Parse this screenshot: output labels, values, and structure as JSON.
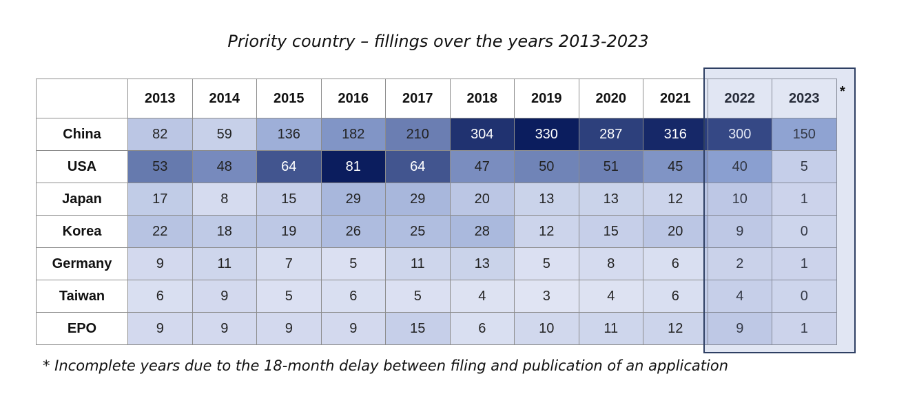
{
  "title": "Priority country – fillings over the years 2013-2023",
  "footnote": "* Incomplete years due to the 18-month delay between filing and publication of an application",
  "asterisk": "*",
  "chart_data": {
    "type": "heatmap",
    "title": "Priority country – fillings over the years 2013-2023",
    "columns": [
      "2013",
      "2014",
      "2015",
      "2016",
      "2017",
      "2018",
      "2019",
      "2020",
      "2021",
      "2022",
      "2023"
    ],
    "rows": [
      {
        "label": "China",
        "values": [
          82,
          59,
          136,
          182,
          210,
          304,
          330,
          287,
          316,
          300,
          150
        ]
      },
      {
        "label": "USA",
        "values": [
          53,
          48,
          64,
          81,
          64,
          47,
          50,
          51,
          45,
          40,
          5
        ]
      },
      {
        "label": "Japan",
        "values": [
          17,
          8,
          15,
          29,
          29,
          20,
          13,
          13,
          12,
          10,
          1
        ]
      },
      {
        "label": "Korea",
        "values": [
          22,
          18,
          19,
          26,
          25,
          28,
          12,
          15,
          20,
          9,
          0
        ]
      },
      {
        "label": "Germany",
        "values": [
          9,
          11,
          7,
          5,
          11,
          13,
          5,
          8,
          6,
          2,
          1
        ]
      },
      {
        "label": "Taiwan",
        "values": [
          6,
          9,
          5,
          6,
          5,
          4,
          3,
          4,
          6,
          4,
          0
        ]
      },
      {
        "label": "EPO",
        "values": [
          9,
          9,
          9,
          9,
          15,
          6,
          10,
          11,
          12,
          9,
          1
        ]
      }
    ],
    "highlighted_columns": [
      "2022",
      "2023"
    ],
    "colors": {
      "low": "#e6e9f6",
      "mid": "#8fa3d2",
      "high": "#0b1d5e",
      "highlight_border": "#2e3f63"
    }
  }
}
